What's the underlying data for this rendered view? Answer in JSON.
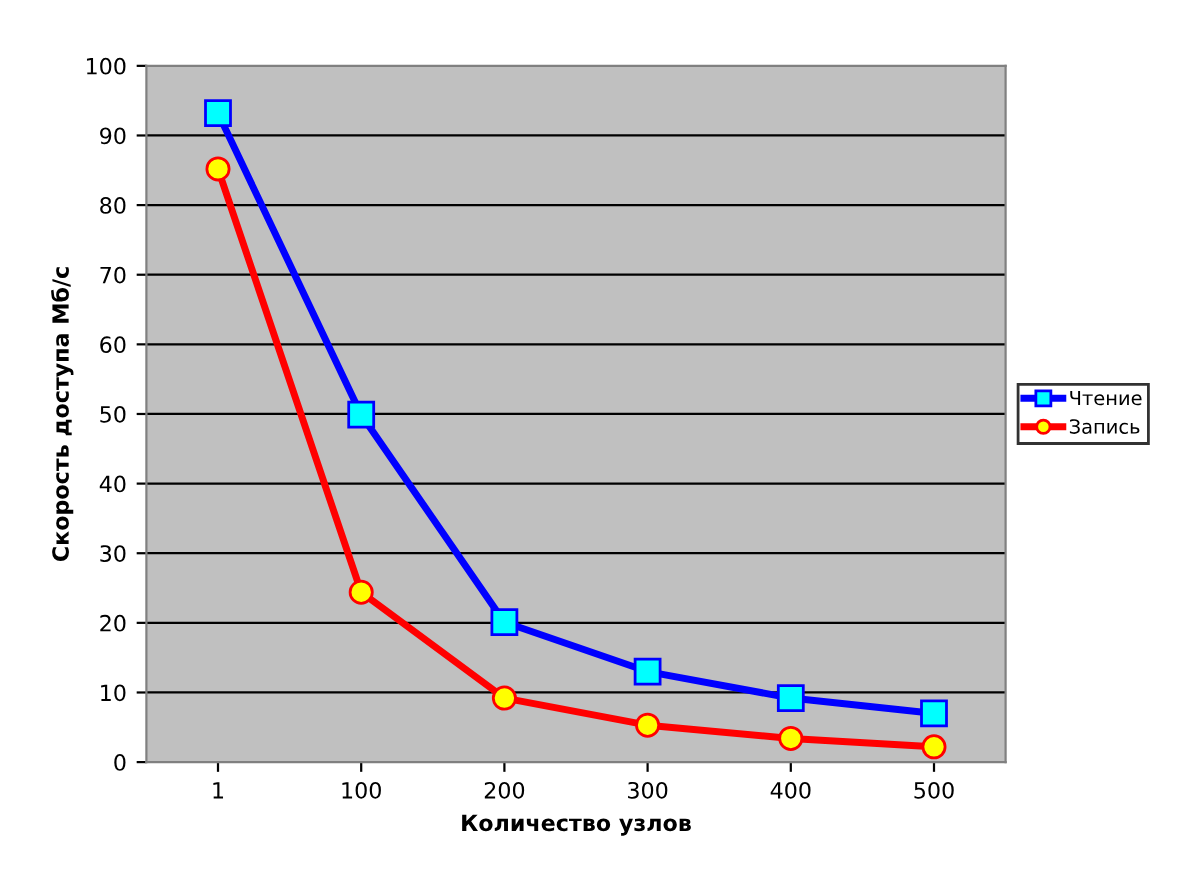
{
  "chart_data": {
    "type": "line",
    "xlabel": "Количество узлов",
    "ylabel": "Скорость доступа Мб/с",
    "categories": [
      "1",
      "100",
      "200",
      "300",
      "400",
      "500"
    ],
    "series": [
      {
        "name": "Чтение",
        "color": "#0000ff",
        "values": [
          93.2,
          49.9,
          20.1,
          13.0,
          9.2,
          7.0
        ],
        "marker": "square"
      },
      {
        "name": "Запись",
        "color": "#ff0000",
        "values": [
          85.2,
          24.4,
          9.2,
          5.3,
          3.4,
          2.2
        ],
        "marker": "circle"
      }
    ],
    "ylim": [
      0,
      100
    ],
    "yticks": [
      0,
      10,
      20,
      30,
      40,
      50,
      60,
      70,
      80,
      90,
      100
    ],
    "grid": "y",
    "legend": "right"
  }
}
